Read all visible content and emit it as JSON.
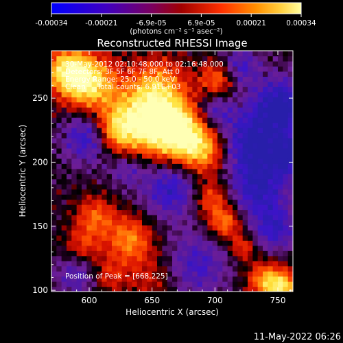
{
  "colorbar": {
    "ticks": [
      "-0.00034",
      "-0.00021",
      "-6.9e-05",
      "6.9e-05",
      "0.00021",
      "0.00034"
    ],
    "unit_label": "(photons cm⁻² s⁻¹ asec⁻²)",
    "min": -0.00034,
    "max": 0.00034
  },
  "chart_data": {
    "type": "heatmap",
    "title": "Reconstructed RHESSI Image",
    "xlabel": "Heliocentric X (arcsec)",
    "ylabel": "Heliocentric Y (arcsec)",
    "xlim": [
      570,
      762
    ],
    "ylim": [
      99,
      287
    ],
    "x_ticks": [
      "600",
      "650",
      "700",
      "750"
    ],
    "y_ticks": [
      "100",
      "150",
      "200",
      "250"
    ],
    "x_tick_values": [
      600,
      650,
      700,
      750
    ],
    "y_tick_values": [
      100,
      150,
      200,
      250
    ],
    "colormap": "red-temperature",
    "peak_position": [
      668,
      225
    ],
    "annotations": {
      "time_range": "30-May-2012 02:10:48.000 to 02:16:48.000",
      "detectors": "Detectors: 3F 5F 6F 7F 8F, Att 0",
      "energy": "Energy Range: 25.0 - 50.0 keV",
      "method": "Clean     Total counts: 6.91E+03",
      "peak": "Position of Peak = [668,225]"
    }
  },
  "footer": {
    "timestamp": "11-May-2022 06:26"
  }
}
